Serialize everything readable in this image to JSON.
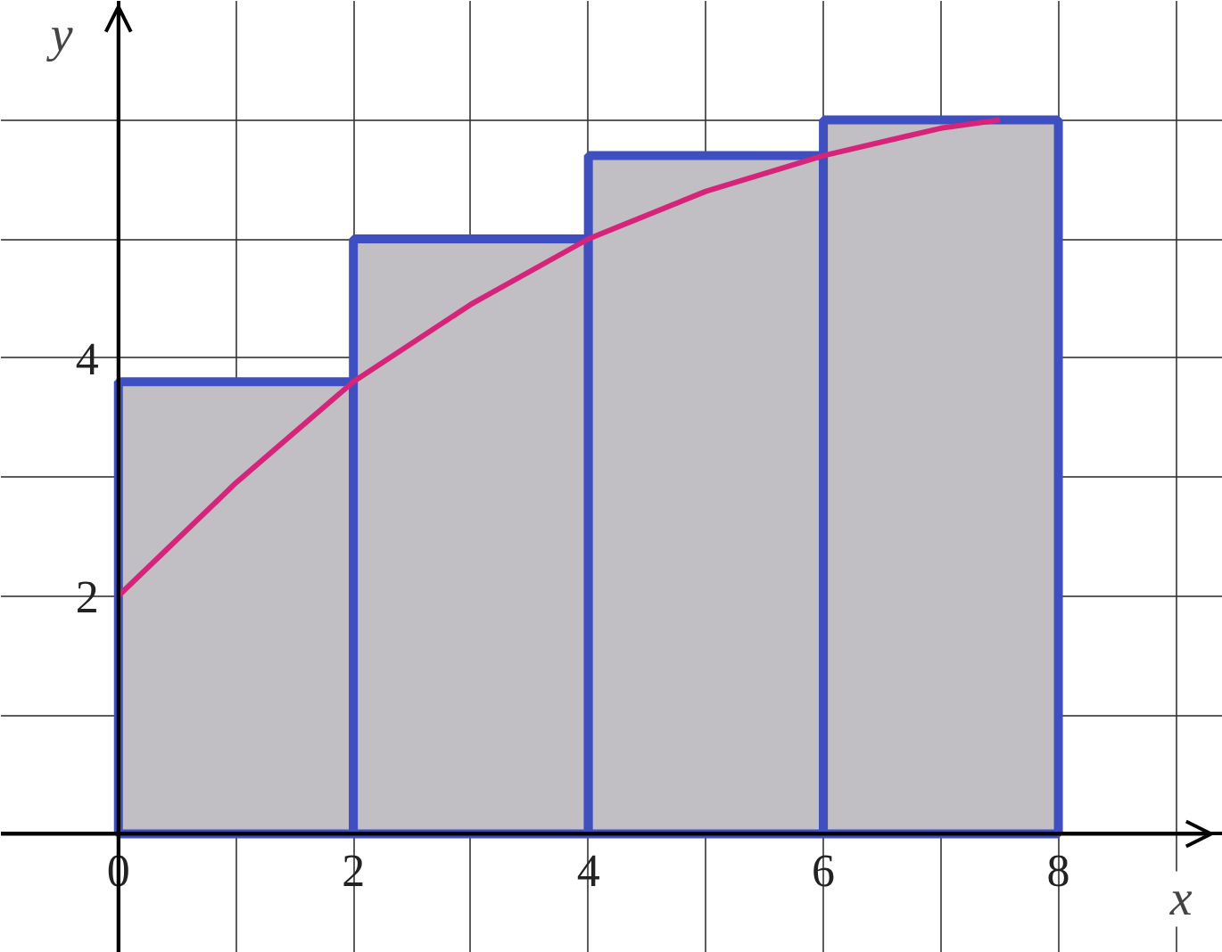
{
  "chart_data": {
    "type": "bar",
    "xlabel": "x",
    "ylabel": "y",
    "xlim": [
      -1,
      9.4
    ],
    "ylim": [
      -1,
      7
    ],
    "xticks": [
      {
        "value": -1,
        "label": null
      },
      0,
      {
        "value": 1,
        "label": null
      },
      2,
      {
        "value": 3,
        "label": null
      },
      4,
      {
        "value": 5,
        "label": null
      },
      6,
      {
        "value": 7,
        "label": null
      },
      8,
      {
        "value": 9,
        "label": null
      }
    ],
    "yticks": [
      {
        "value": -1,
        "label": null
      },
      {
        "value": 1,
        "label": null
      },
      2,
      {
        "value": 3,
        "label": null
      },
      4,
      {
        "value": 5,
        "label": null
      },
      {
        "value": 6,
        "label": null
      },
      {
        "value": 7,
        "label": null
      }
    ],
    "grid": true,
    "series": [
      {
        "color": "#c1bfc3",
        "x": [
          1,
          3,
          5,
          7
        ],
        "values": [
          3.8,
          5.0,
          5.7,
          6.0
        ]
      },
      {
        "type": "line",
        "color": "#d6247a",
        "x": [
          0,
          1,
          2,
          3,
          4,
          5,
          6,
          7,
          7.5
        ],
        "values": [
          2,
          2.95,
          3.8,
          4.45,
          5.0,
          5.4,
          5.7,
          5.93,
          6.0
        ]
      }
    ]
  }
}
